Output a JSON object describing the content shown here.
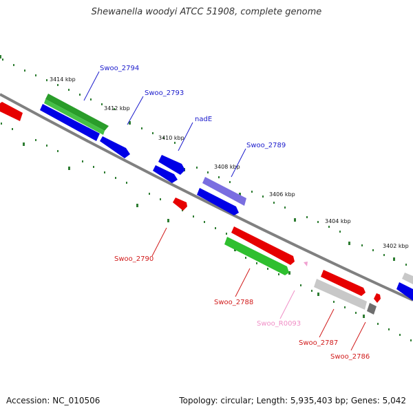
{
  "title": "Shewanella woodyi ATCC 51908, complete genome",
  "footer": {
    "accession": "Accession: NC_010506",
    "topology": "Topology: circular; Length: 5,935,403 bp; Genes: 5,042"
  },
  "colors": {
    "backbone": "#808080",
    "tick": "#2e7d32",
    "blue": "#0000e6",
    "green": "#2fbf2f",
    "darkgreen": "#2a9d2a",
    "purple": "#7a6ee0",
    "red": "#e60000",
    "gray": "#c8c8c8",
    "darkgray": "#6e6e6e",
    "pink": "#f0a0d0",
    "label_blue": "#1a1acc",
    "label_red": "#d11a1a",
    "label_pink": "#f08ec6"
  },
  "scale": {
    "labels": [
      "3414 kbp",
      "3412 kbp",
      "3410 kbp",
      "3408 kbp",
      "3406 kbp",
      "3404 kbp",
      "3402 kbp"
    ]
  },
  "genes": [
    {
      "name": "Swoo_2794",
      "color": "label_blue"
    },
    {
      "name": "Swoo_2793",
      "color": "label_blue"
    },
    {
      "name": "nadE",
      "color": "label_blue"
    },
    {
      "name": "Swoo_2789",
      "color": "label_blue"
    },
    {
      "name": "Swoo_2790",
      "color": "label_red"
    },
    {
      "name": "Swoo_2788",
      "color": "label_red"
    },
    {
      "name": "Swoo_R0093",
      "color": "label_pink"
    },
    {
      "name": "Swoo_2787",
      "color": "label_red"
    },
    {
      "name": "Swoo_2786",
      "color": "label_red"
    }
  ]
}
